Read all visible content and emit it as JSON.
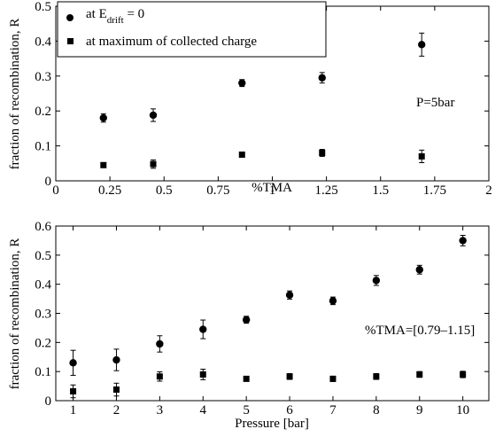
{
  "chart_data": [
    {
      "type": "scatter",
      "xlabel": "%TMA",
      "ylabel": "fraction of recombination, R",
      "xlim": [
        0,
        2
      ],
      "ylim": [
        0,
        0.5
      ],
      "xticks": [
        0,
        0.25,
        0.5,
        0.75,
        1,
        1.25,
        1.5,
        1.75,
        2
      ],
      "xtick_labels": [
        "0",
        "0.25",
        "0.5",
        "0.75",
        "1",
        "1.25",
        "1.5",
        "1.75",
        "2"
      ],
      "yticks": [
        0,
        0.1,
        0.2,
        0.3,
        0.4,
        0.5
      ],
      "ytick_labels": [
        "0",
        "0.1",
        "0.2",
        "0.3",
        "0.4",
        "0.5"
      ],
      "grid": false,
      "legend_position": "top-left",
      "annotation": "P=5bar",
      "series": [
        {
          "name": "at E drift = 0",
          "name_main": "at E",
          "name_sub": "drift",
          "name_tail": " = 0",
          "marker": "circle",
          "points": [
            {
              "x": 0.22,
              "y": 0.18,
              "err": 0.012
            },
            {
              "x": 0.45,
              "y": 0.188,
              "err": 0.018
            },
            {
              "x": 0.86,
              "y": 0.28,
              "err": 0.01
            },
            {
              "x": 1.23,
              "y": 0.295,
              "err": 0.015
            },
            {
              "x": 1.69,
              "y": 0.39,
              "err": 0.033
            }
          ]
        },
        {
          "name": "at maximum of collected charge",
          "marker": "square",
          "points": [
            {
              "x": 0.22,
              "y": 0.045,
              "err": 0.004
            },
            {
              "x": 0.45,
              "y": 0.048,
              "err": 0.012
            },
            {
              "x": 0.86,
              "y": 0.075,
              "err": 0.005
            },
            {
              "x": 1.23,
              "y": 0.08,
              "err": 0.01
            },
            {
              "x": 1.69,
              "y": 0.07,
              "err": 0.018
            }
          ]
        }
      ]
    },
    {
      "type": "scatter",
      "xlabel": "Pressure [bar]",
      "ylabel": "fraction of recombination, R",
      "xlim": [
        0.6,
        10.6
      ],
      "ylim": [
        0,
        0.6
      ],
      "xticks": [
        1,
        2,
        3,
        4,
        5,
        6,
        7,
        8,
        9,
        10
      ],
      "xtick_labels": [
        "1",
        "2",
        "3",
        "4",
        "5",
        "6",
        "7",
        "8",
        "9",
        "10"
      ],
      "yticks": [
        0,
        0.1,
        0.2,
        0.3,
        0.4,
        0.5,
        0.6
      ],
      "ytick_labels": [
        "0",
        "0.1",
        "0.2",
        "0.3",
        "0.4",
        "0.5",
        "0.6"
      ],
      "grid": false,
      "annotation": "%TMA=[0.79–1.15]",
      "series": [
        {
          "marker": "circle",
          "points": [
            {
              "x": 1,
              "y": 0.13,
              "err": 0.043
            },
            {
              "x": 2,
              "y": 0.14,
              "err": 0.037
            },
            {
              "x": 3,
              "y": 0.195,
              "err": 0.028
            },
            {
              "x": 4,
              "y": 0.245,
              "err": 0.032
            },
            {
              "x": 5,
              "y": 0.278,
              "err": 0.012
            },
            {
              "x": 6,
              "y": 0.363,
              "err": 0.014
            },
            {
              "x": 7,
              "y": 0.343,
              "err": 0.013
            },
            {
              "x": 8,
              "y": 0.413,
              "err": 0.017
            },
            {
              "x": 9,
              "y": 0.45,
              "err": 0.015
            },
            {
              "x": 10,
              "y": 0.55,
              "err": 0.018
            }
          ]
        },
        {
          "marker": "square",
          "points": [
            {
              "x": 1,
              "y": 0.032,
              "err": 0.022
            },
            {
              "x": 2,
              "y": 0.038,
              "err": 0.022
            },
            {
              "x": 3,
              "y": 0.083,
              "err": 0.016
            },
            {
              "x": 4,
              "y": 0.09,
              "err": 0.018
            },
            {
              "x": 5,
              "y": 0.075,
              "err": 0.008
            },
            {
              "x": 6,
              "y": 0.083,
              "err": 0.01
            },
            {
              "x": 7,
              "y": 0.075,
              "err": 0.009
            },
            {
              "x": 8,
              "y": 0.083,
              "err": 0.01
            },
            {
              "x": 9,
              "y": 0.09,
              "err": 0.01
            },
            {
              "x": 10,
              "y": 0.09,
              "err": 0.011
            }
          ]
        }
      ]
    }
  ]
}
